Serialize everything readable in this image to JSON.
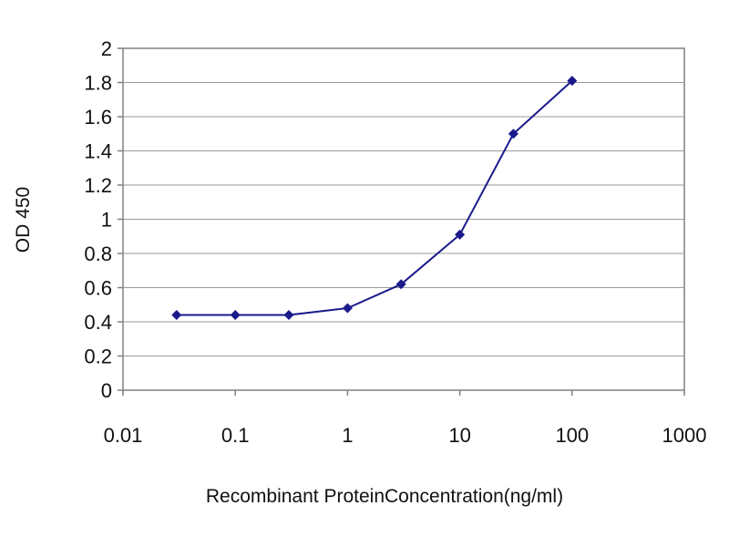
{
  "chart_data": {
    "type": "line",
    "title": "",
    "xlabel": "Recombinant ProteinConcentration(ng/ml)",
    "ylabel": "OD 450",
    "xscale": "log",
    "xlim": [
      0.01,
      1000
    ],
    "ylim": [
      0,
      2
    ],
    "x_ticks": [
      0.01,
      0.1,
      1,
      10,
      100,
      1000
    ],
    "x_tick_labels": [
      "0.01",
      "0.1",
      "1",
      "10",
      "100",
      "1000"
    ],
    "y_ticks": [
      0,
      0.2,
      0.4,
      0.6,
      0.8,
      1,
      1.2,
      1.4,
      1.6,
      1.8,
      2
    ],
    "y_tick_labels": [
      "0",
      "0.2",
      "0.4",
      "0.6",
      "0.8",
      "1",
      "1.2",
      "1.4",
      "1.6",
      "1.8",
      "2"
    ],
    "grid": "horizontal",
    "legend": "none",
    "series": [
      {
        "x": [
          0.03,
          0.1,
          0.3,
          1,
          3,
          10,
          30,
          100
        ],
        "y": [
          0.44,
          0.44,
          0.44,
          0.48,
          0.62,
          0.91,
          1.5,
          1.81
        ],
        "color": "#1a1a8c"
      }
    ]
  }
}
